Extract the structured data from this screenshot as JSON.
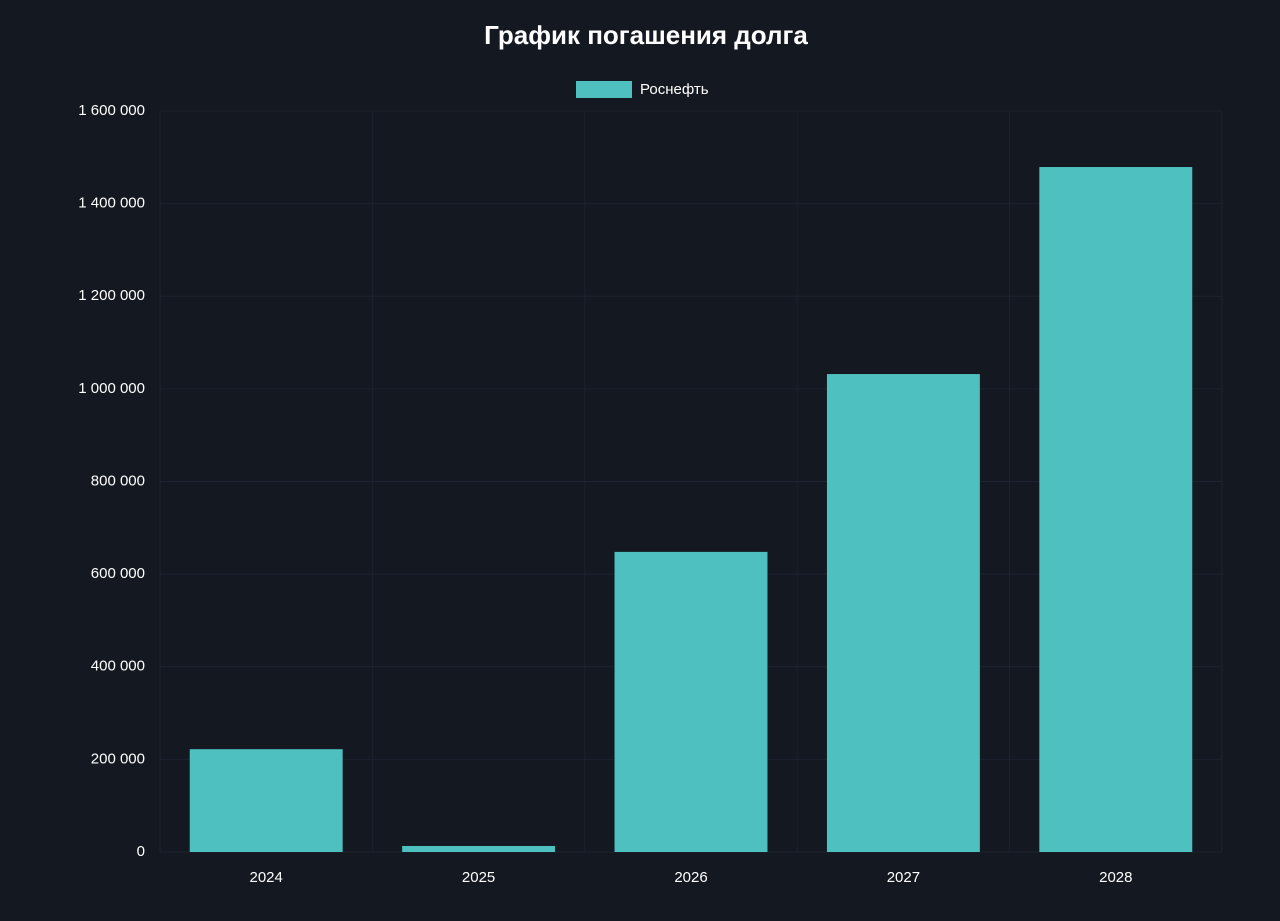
{
  "chart_data": {
    "type": "bar",
    "title": "График погашения долга",
    "categories": [
      "2024",
      "2025",
      "2026",
      "2027",
      "2028"
    ],
    "series": [
      {
        "name": "Роснефть",
        "color": "#4ec0c0",
        "values": [
          222000,
          13000,
          648000,
          1032000,
          1479000
        ]
      }
    ],
    "ylim": [
      0,
      1600000
    ],
    "yticks": [
      0,
      {
        "value": 200000,
        "label": "200 000"
      },
      {
        "value": 400000,
        "label": "400 000"
      },
      {
        "value": 600000,
        "label": "600 000"
      },
      {
        "value": 800000,
        "label": "800 000"
      },
      {
        "value": 1000000,
        "label": "1 000 000"
      },
      {
        "value": 1200000,
        "label": "1 200 000"
      },
      {
        "value": 1400000,
        "label": "1 400 000"
      },
      {
        "value": 1600000,
        "label": "1 600 000"
      }
    ],
    "grid": true,
    "legend": "top"
  }
}
